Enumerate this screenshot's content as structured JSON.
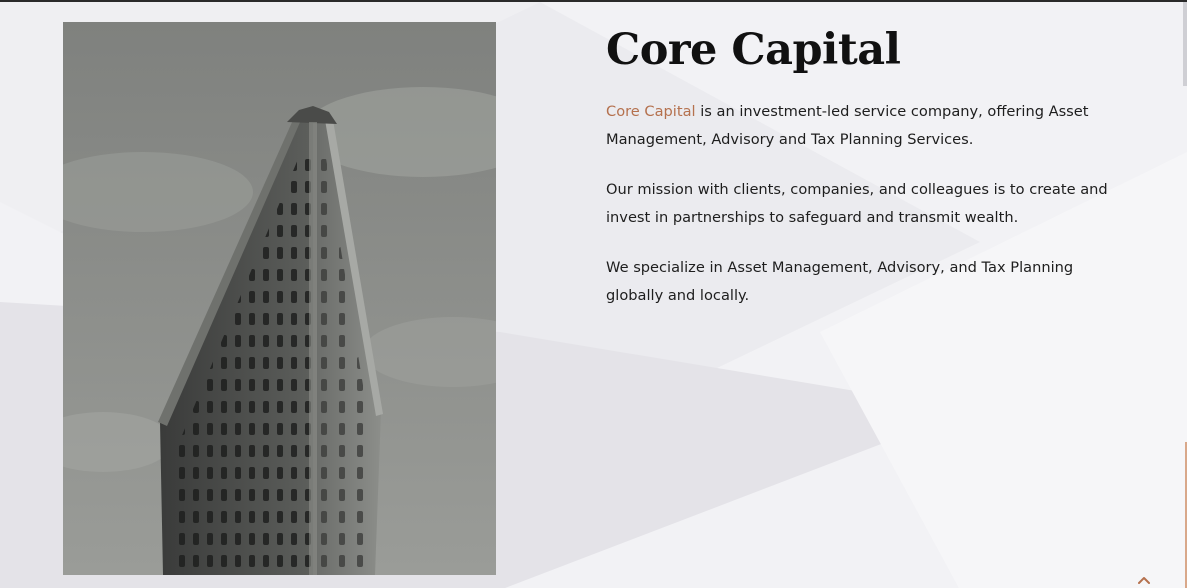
{
  "hero": {
    "title": "Core Capital",
    "image_alt": "Black and white photo of the Flatiron building",
    "paragraphs": {
      "p1": {
        "brand_link": "Core Capital",
        "text": " is an investment-led service company, offering Asset Management, Advisory and Tax Planning Services."
      },
      "p2": "Our mission with clients, companies, and colleagues is to create and invest in partnerships to safeguard and transmit wealth.",
      "p3": "We specialize in Asset Management, Advisory, and Tax Planning globally and locally."
    }
  },
  "colors": {
    "accent": "#b5714e",
    "title": "#111111",
    "background": "#f3f3f6"
  },
  "icons": {
    "back_to_top": "chevron-up-icon"
  }
}
